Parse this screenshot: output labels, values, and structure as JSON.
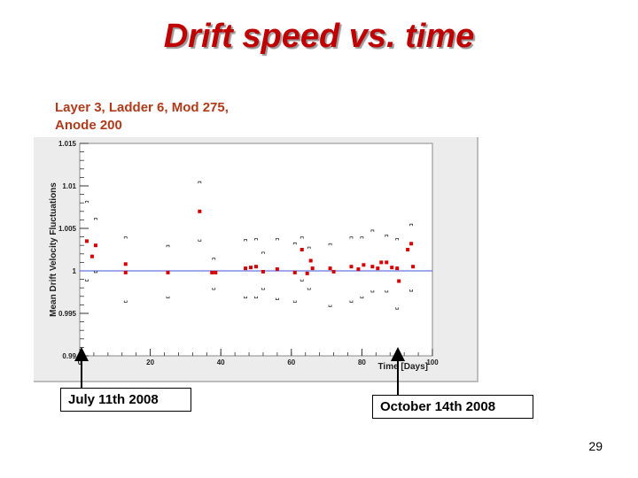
{
  "slide": {
    "title": "Drift speed vs. time",
    "subtitle_line1": "Layer 3, Ladder 6, Mod 275,",
    "subtitle_line2": "Anode 200",
    "callout_start": "July 11th 2008",
    "callout_end": "October 14th 2008",
    "page_number": "29"
  },
  "colors": {
    "title": "#c00000",
    "subtitle": "#b03a1a",
    "marker": "#d40000",
    "reference_line": "#3f51e0",
    "plot_bg": "#ffffff"
  },
  "chart_data": {
    "type": "scatter",
    "title": "",
    "xlabel": "Time [Days]",
    "ylabel": "Mean Drift Velocity Fluctuations",
    "xlim": [
      0,
      100
    ],
    "ylim": [
      0.99,
      1.015
    ],
    "x_ticks": [
      0,
      20,
      40,
      60,
      80,
      100
    ],
    "x_tick_labels": [
      "0",
      "20",
      "40",
      "60",
      "80",
      "100"
    ],
    "y_ticks": [
      0.99,
      0.995,
      1,
      1.005,
      1.01,
      1.015
    ],
    "y_tick_labels": [
      "0.99",
      "0.995",
      "1",
      "1.005",
      "1.01",
      "1.015"
    ],
    "reference_line_y": 1,
    "grid": false,
    "series": [
      {
        "points": [
          {
            "x": 2,
            "y": 1.0035
          },
          {
            "x": 3.5,
            "y": 1.0017
          },
          {
            "x": 4.5,
            "y": 1.003
          },
          {
            "x": 13,
            "y": 1.0008
          },
          {
            "x": 13,
            "y": 0.9998
          },
          {
            "x": 25,
            "y": 0.9998
          },
          {
            "x": 34,
            "y": 1.007
          },
          {
            "x": 37.5,
            "y": 0.9998
          },
          {
            "x": 38.5,
            "y": 0.9998
          },
          {
            "x": 47,
            "y": 1.0003
          },
          {
            "x": 48.5,
            "y": 1.0004
          },
          {
            "x": 50,
            "y": 1.0005
          },
          {
            "x": 52,
            "y": 0.9999
          },
          {
            "x": 56,
            "y": 1.0002
          },
          {
            "x": 61,
            "y": 0.9998
          },
          {
            "x": 63,
            "y": 1.0025
          },
          {
            "x": 64.5,
            "y": 0.9997
          },
          {
            "x": 65.5,
            "y": 1.0012
          },
          {
            "x": 66,
            "y": 1.0003
          },
          {
            "x": 71,
            "y": 1.0003
          },
          {
            "x": 72,
            "y": 0.9999
          },
          {
            "x": 77,
            "y": 1.0005
          },
          {
            "x": 79,
            "y": 1.0002
          },
          {
            "x": 80.5,
            "y": 1.0007
          },
          {
            "x": 83,
            "y": 1.0005
          },
          {
            "x": 84.5,
            "y": 1.0003
          },
          {
            "x": 85.5,
            "y": 1.001
          },
          {
            "x": 87,
            "y": 1.001
          },
          {
            "x": 88.5,
            "y": 1.0004
          },
          {
            "x": 90,
            "y": 1.0003
          },
          {
            "x": 90.5,
            "y": 0.9988
          },
          {
            "x": 93,
            "y": 1.0025
          },
          {
            "x": 94,
            "y": 1.0032
          },
          {
            "x": 94.5,
            "y": 1.0005
          }
        ]
      }
    ],
    "error_bars": [
      {
        "x": 2,
        "lo": 0.9988,
        "hi": 1.0082
      },
      {
        "x": 4.5,
        "lo": 0.9998,
        "hi": 1.0062
      },
      {
        "x": 13,
        "lo": 0.9963,
        "hi": 1.004
      },
      {
        "x": 25,
        "lo": 0.9968,
        "hi": 1.003
      },
      {
        "x": 34,
        "lo": 1.0035,
        "hi": 1.0105
      },
      {
        "x": 38,
        "lo": 0.9978,
        "hi": 1.0015
      },
      {
        "x": 47,
        "lo": 0.9968,
        "hi": 1.0037
      },
      {
        "x": 50,
        "lo": 0.9968,
        "hi": 1.0038
      },
      {
        "x": 52,
        "lo": 0.9978,
        "hi": 1.0022
      },
      {
        "x": 56,
        "lo": 0.9966,
        "hi": 1.0038
      },
      {
        "x": 61,
        "lo": 0.9963,
        "hi": 1.0033
      },
      {
        "x": 63,
        "lo": 0.9988,
        "hi": 1.004
      },
      {
        "x": 65,
        "lo": 0.9978,
        "hi": 1.0028
      },
      {
        "x": 71,
        "lo": 0.9958,
        "hi": 1.0032
      },
      {
        "x": 77,
        "lo": 0.9963,
        "hi": 1.004
      },
      {
        "x": 80,
        "lo": 0.9968,
        "hi": 1.004
      },
      {
        "x": 83,
        "lo": 0.9975,
        "hi": 1.0048
      },
      {
        "x": 87,
        "lo": 0.9975,
        "hi": 1.0042
      },
      {
        "x": 90,
        "lo": 0.9955,
        "hi": 1.0038
      },
      {
        "x": 94,
        "lo": 0.9976,
        "hi": 1.0055
      }
    ]
  }
}
